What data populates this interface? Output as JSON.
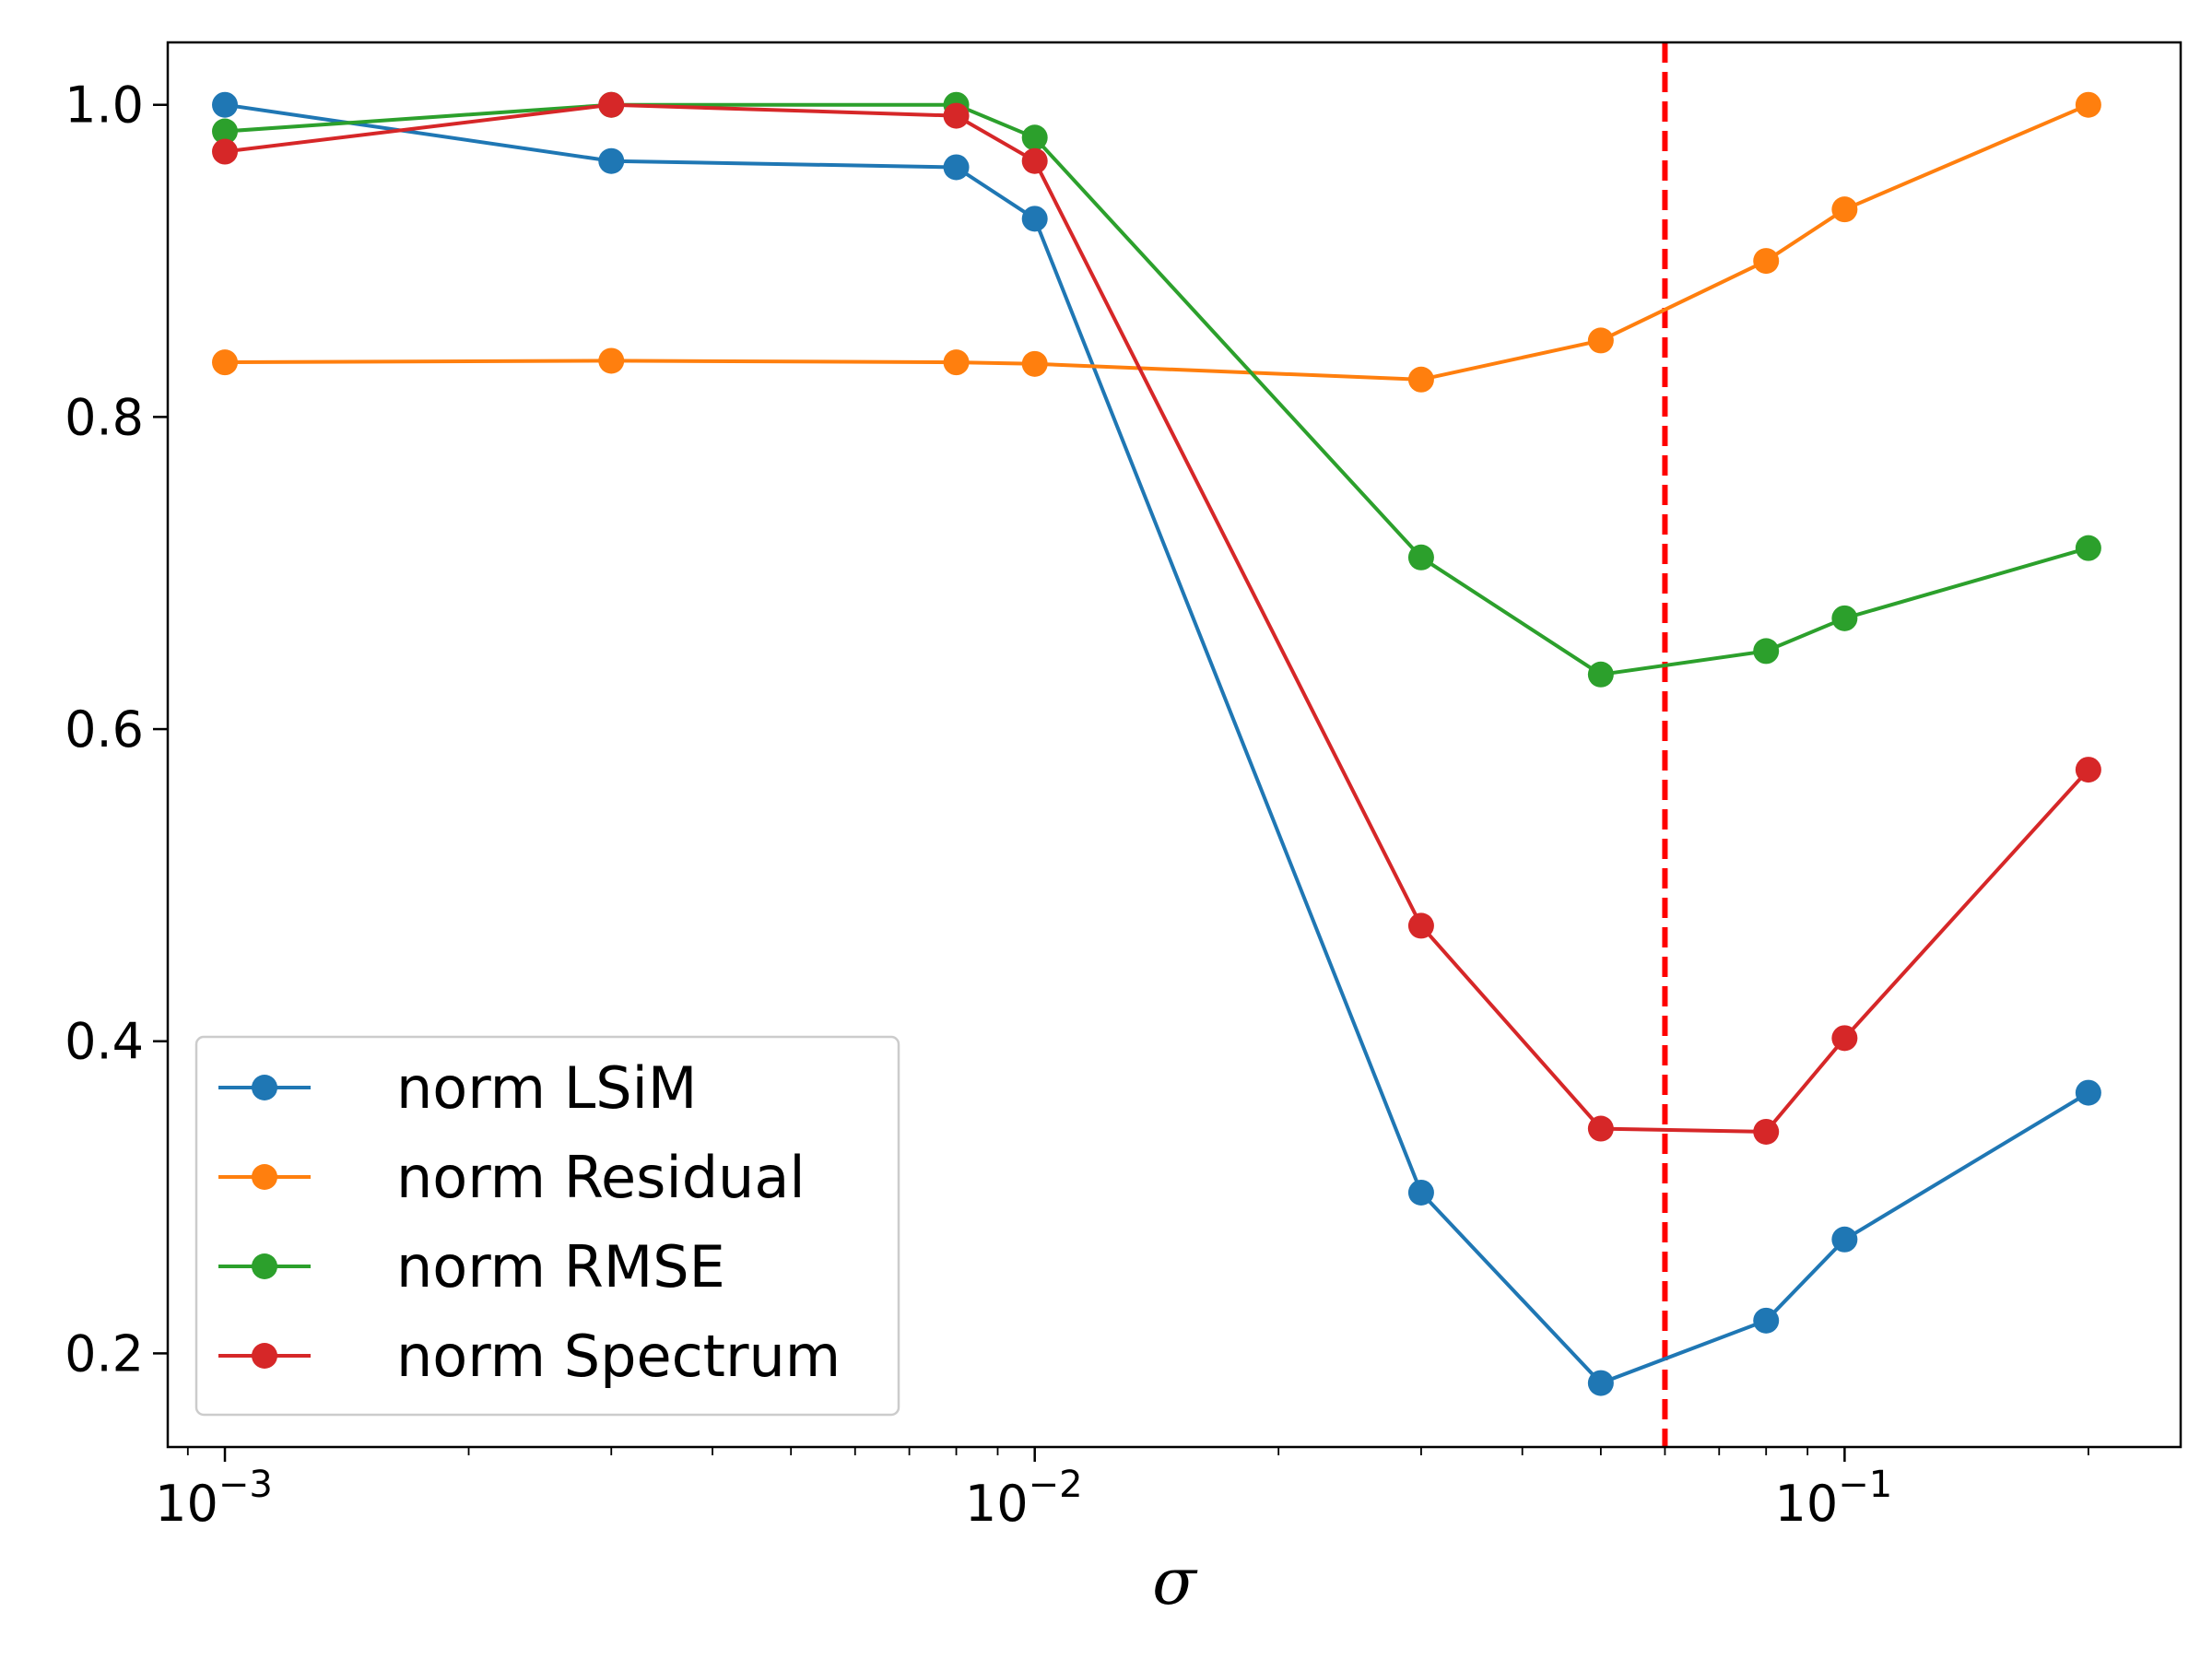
{
  "chart_data": {
    "type": "line",
    "title": "",
    "xlabel": "σ",
    "ylabel": "",
    "xscale": "log",
    "xlim": [
      0.00085,
      0.26
    ],
    "ylim": [
      0.14,
      1.04
    ],
    "yticks": [
      0.2,
      0.4,
      0.6,
      0.8,
      1.0
    ],
    "ytick_labels": [
      "0.2",
      "0.4",
      "0.6",
      "0.8",
      "1.0"
    ],
    "xticks": [
      0.001,
      0.01,
      0.1
    ],
    "xtick_labels": [
      {
        "base": "10",
        "exp": "−3"
      },
      {
        "base": "10",
        "exp": "−2"
      },
      {
        "base": "10",
        "exp": "−1"
      }
    ],
    "grid": false,
    "legend_position": "lower-left",
    "x": [
      0.001,
      0.003,
      0.008,
      0.01,
      0.03,
      0.05,
      0.08,
      0.1,
      0.2
    ],
    "series": [
      {
        "name": "norm LSiM",
        "color": "#1f77b4",
        "values": [
          1.0,
          0.964,
          0.96,
          0.927,
          0.303,
          0.181,
          0.221,
          0.273,
          0.367
        ]
      },
      {
        "name": "norm Residual",
        "color": "#ff7f0e",
        "values": [
          0.835,
          0.836,
          0.835,
          0.834,
          0.824,
          0.849,
          0.9,
          0.933,
          1.0
        ]
      },
      {
        "name": "norm RMSE",
        "color": "#2ca02c",
        "values": [
          0.983,
          1.0,
          1.0,
          0.979,
          0.71,
          0.635,
          0.65,
          0.671,
          0.716
        ]
      },
      {
        "name": "norm Spectrum",
        "color": "#d62728",
        "values": [
          0.97,
          1.0,
          0.993,
          0.964,
          0.474,
          0.344,
          0.342,
          0.402,
          0.574
        ]
      }
    ],
    "vline": {
      "x": 0.06,
      "color": "#ff0000",
      "style": "dashed"
    }
  }
}
